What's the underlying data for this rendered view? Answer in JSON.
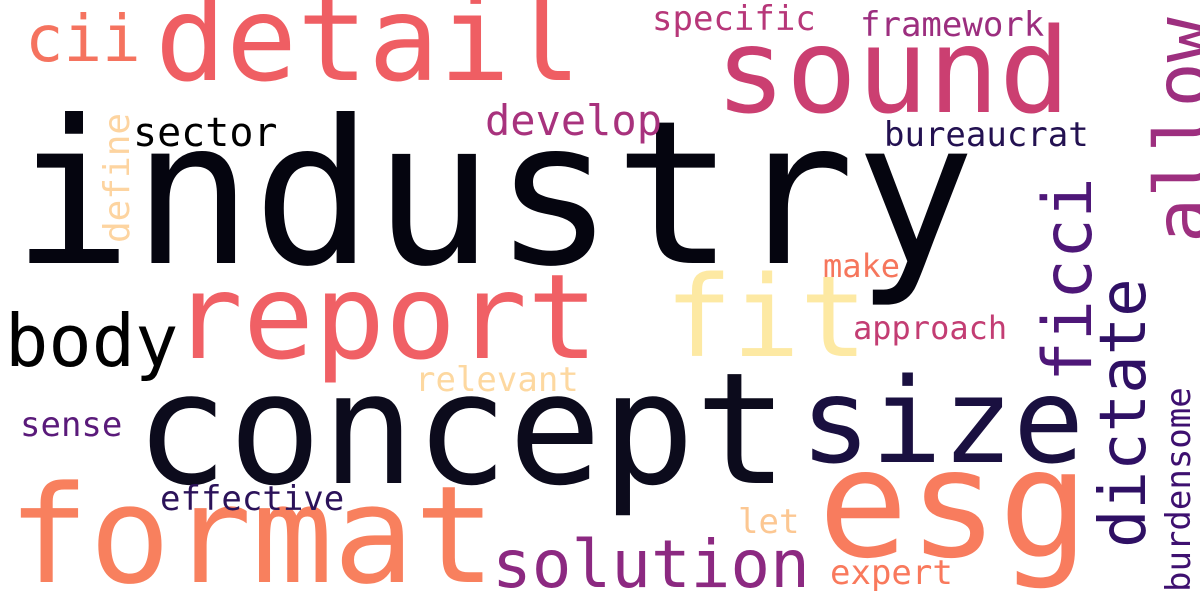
{
  "words": [
    {
      "text": "industry",
      "color": "#05050f",
      "vertical": false
    },
    {
      "text": "concept",
      "color": "#0c0b1c",
      "vertical": false
    },
    {
      "text": "detail",
      "color": "#ef5e63",
      "vertical": false
    },
    {
      "text": "sound",
      "color": "#cb3f71",
      "vertical": false
    },
    {
      "text": "report",
      "color": "#f06065",
      "vertical": false
    },
    {
      "text": "fit",
      "color": "#fde9a3",
      "vertical": false
    },
    {
      "text": "size",
      "color": "#1a1040",
      "vertical": false
    },
    {
      "text": "esg",
      "color": "#f87c5e",
      "vertical": false
    },
    {
      "text": "format",
      "color": "#f8805e",
      "vertical": false
    },
    {
      "text": "body",
      "color": "#000000",
      "vertical": false
    },
    {
      "text": "solution",
      "color": "#8c2981",
      "vertical": false
    },
    {
      "text": "cii",
      "color": "#f5735f",
      "vertical": false
    },
    {
      "text": "sector",
      "color": "#000000",
      "vertical": false
    },
    {
      "text": "develop",
      "color": "#a8327d",
      "vertical": false
    },
    {
      "text": "specific",
      "color": "#b73779",
      "vertical": false
    },
    {
      "text": "framework",
      "color": "#9c2e7f",
      "vertical": false
    },
    {
      "text": "bureaucrat",
      "color": "#231151",
      "vertical": false
    },
    {
      "text": "make",
      "color": "#f6765c",
      "vertical": false
    },
    {
      "text": "approach",
      "color": "#c33d73",
      "vertical": false
    },
    {
      "text": "relevant",
      "color": "#fdd8a0",
      "vertical": false
    },
    {
      "text": "sense",
      "color": "#5a1a7a",
      "vertical": false
    },
    {
      "text": "effective",
      "color": "#2b1259",
      "vertical": false
    },
    {
      "text": "let",
      "color": "#fcc792",
      "vertical": false
    },
    {
      "text": "expert",
      "color": "#f9795c",
      "vertical": false
    },
    {
      "text": "define",
      "color": "#fdd4a0",
      "vertical": true
    },
    {
      "text": "allow",
      "color": "#9d2f7f",
      "vertical": true
    },
    {
      "text": "ficci",
      "color": "#4e1778",
      "vertical": true
    },
    {
      "text": "dictate",
      "color": "#2f1064",
      "vertical": true
    },
    {
      "text": "burdensome",
      "color": "#3e1070",
      "vertical": true
    }
  ]
}
